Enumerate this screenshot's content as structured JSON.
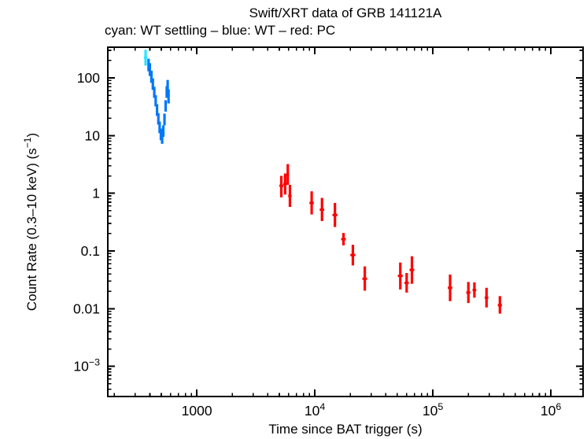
{
  "header": {
    "title": "Swift/XRT data of GRB 141121A",
    "subtitle": "cyan: WT settling – blue: WT – red: PC"
  },
  "chart_data": {
    "type": "scatter",
    "title": "Swift/XRT data of GRB 141121A",
    "subtitle": "cyan: WT settling – blue: WT – red: PC",
    "xlabel": "Time since BAT trigger (s)",
    "ylabel": "Count Rate (0.3–10 keV) (s^{−1})",
    "xscale": "log",
    "yscale": "log",
    "xlim": [
      176,
      1875000
    ],
    "ylim": [
      0.0003,
      340
    ],
    "grid": false,
    "frame_color": "#000000",
    "x_ticks": [
      {
        "value": 1000,
        "label": "1000"
      },
      {
        "value": 10000,
        "label": "10^{4}"
      },
      {
        "value": 100000,
        "label": "10^{5}"
      },
      {
        "value": 1000000,
        "label": "10^{6}"
      }
    ],
    "y_ticks": [
      {
        "value": 100,
        "label": "100"
      },
      {
        "value": 10,
        "label": "10"
      },
      {
        "value": 1,
        "label": "1"
      },
      {
        "value": 0.1,
        "label": "0.1"
      },
      {
        "value": 0.01,
        "label": "0.01"
      },
      {
        "value": 0.001,
        "label": "10^{−3}"
      }
    ],
    "series": [
      {
        "name": "WT settling",
        "color": "#2ae4ff",
        "points": [
          {
            "t": 368,
            "terr": 12,
            "rate": 225,
            "lo": 163,
            "hi": 308
          }
        ]
      },
      {
        "name": "WT",
        "color": "#0078f8",
        "points": [
          {
            "t": 390,
            "terr": 4,
            "rate": 170,
            "lo": 130,
            "hi": 215
          },
          {
            "t": 400,
            "terr": 4,
            "rate": 140,
            "lo": 108,
            "hi": 180
          },
          {
            "t": 412,
            "terr": 4,
            "rate": 105,
            "lo": 82,
            "hi": 133
          },
          {
            "t": 424,
            "terr": 4,
            "rate": 78,
            "lo": 62,
            "hi": 98
          },
          {
            "t": 436,
            "terr": 4,
            "rate": 56,
            "lo": 45,
            "hi": 70
          },
          {
            "t": 448,
            "terr": 4,
            "rate": 40,
            "lo": 32,
            "hi": 50
          },
          {
            "t": 460,
            "terr": 4,
            "rate": 28,
            "lo": 22,
            "hi": 35
          },
          {
            "t": 472,
            "terr": 4,
            "rate": 19.5,
            "lo": 15.5,
            "hi": 24.5
          },
          {
            "t": 484,
            "terr": 4,
            "rate": 14,
            "lo": 11,
            "hi": 17.5
          },
          {
            "t": 496,
            "terr": 4,
            "rate": 10.5,
            "lo": 8.3,
            "hi": 13.2
          },
          {
            "t": 508,
            "terr": 4,
            "rate": 9,
            "lo": 7.2,
            "hi": 11.3
          },
          {
            "t": 520,
            "terr": 4,
            "rate": 12,
            "lo": 9.5,
            "hi": 15
          },
          {
            "t": 532,
            "terr": 4,
            "rate": 19,
            "lo": 15,
            "hi": 24
          },
          {
            "t": 544,
            "terr": 4,
            "rate": 33,
            "lo": 26,
            "hi": 41
          },
          {
            "t": 556,
            "terr": 4,
            "rate": 57,
            "lo": 45,
            "hi": 72
          },
          {
            "t": 566,
            "terr": 4,
            "rate": 72,
            "lo": 55,
            "hi": 92
          },
          {
            "t": 576,
            "terr": 4,
            "rate": 48,
            "lo": 36,
            "hi": 63
          }
        ]
      },
      {
        "name": "PC",
        "color": "#ff0000",
        "points": [
          {
            "t": 5200,
            "terr": 200,
            "rate": 1.35,
            "lo": 0.85,
            "hi": 2.0
          },
          {
            "t": 5600,
            "terr": 200,
            "rate": 1.45,
            "lo": 0.95,
            "hi": 2.2
          },
          {
            "t": 5900,
            "terr": 150,
            "rate": 2.1,
            "lo": 1.4,
            "hi": 3.2
          },
          {
            "t": 6150,
            "terr": 200,
            "rate": 0.9,
            "lo": 0.58,
            "hi": 1.4
          },
          {
            "t": 9400,
            "terr": 400,
            "rate": 0.68,
            "lo": 0.43,
            "hi": 1.08
          },
          {
            "t": 11500,
            "terr": 500,
            "rate": 0.52,
            "lo": 0.33,
            "hi": 0.83
          },
          {
            "t": 14800,
            "terr": 700,
            "rate": 0.42,
            "lo": 0.26,
            "hi": 0.68
          },
          {
            "t": 17500,
            "terr": 800,
            "rate": 0.16,
            "lo": 0.125,
            "hi": 0.205
          },
          {
            "t": 21000,
            "terr": 1000,
            "rate": 0.085,
            "lo": 0.056,
            "hi": 0.128
          },
          {
            "t": 26500,
            "terr": 1200,
            "rate": 0.033,
            "lo": 0.0205,
            "hi": 0.054
          },
          {
            "t": 53000,
            "terr": 2500,
            "rate": 0.037,
            "lo": 0.0215,
            "hi": 0.063
          },
          {
            "t": 60000,
            "terr": 2500,
            "rate": 0.028,
            "lo": 0.019,
            "hi": 0.0415
          },
          {
            "t": 66500,
            "terr": 3000,
            "rate": 0.047,
            "lo": 0.027,
            "hi": 0.081
          },
          {
            "t": 140000,
            "terr": 6000,
            "rate": 0.023,
            "lo": 0.0135,
            "hi": 0.039
          },
          {
            "t": 200000,
            "terr": 8000,
            "rate": 0.019,
            "lo": 0.0125,
            "hi": 0.029
          },
          {
            "t": 225000,
            "terr": 8000,
            "rate": 0.021,
            "lo": 0.0155,
            "hi": 0.0285
          },
          {
            "t": 285000,
            "terr": 10000,
            "rate": 0.0155,
            "lo": 0.0105,
            "hi": 0.023
          },
          {
            "t": 370000,
            "terr": 15000,
            "rate": 0.0115,
            "lo": 0.0082,
            "hi": 0.0165
          }
        ]
      }
    ]
  }
}
